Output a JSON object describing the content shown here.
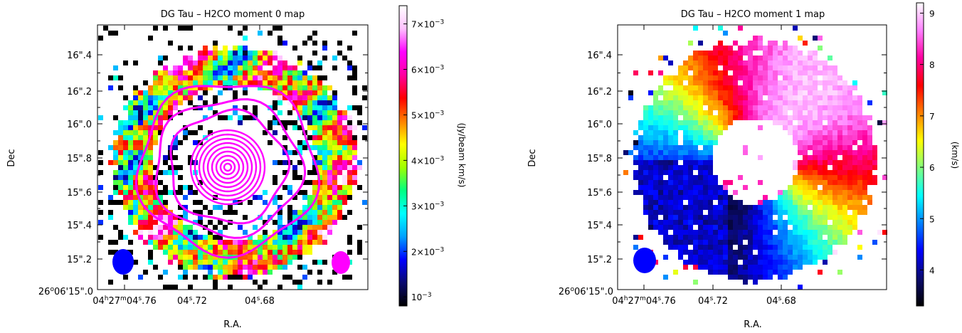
{
  "chart_data": [
    {
      "type": "heatmap",
      "title": "DG Tau – H2CO moment 0 map",
      "xlabel": "R.A.",
      "ylabel": "Dec",
      "x_ticks": [
        "04h27m04s.76",
        "04s.72",
        "04s.68"
      ],
      "x_tick_parts": [
        {
          "a": "04",
          "b": "h",
          "c": "27",
          "d": "m",
          "e": "04",
          "f": "s",
          "g": ".76"
        },
        {
          "a": "04",
          "b": "s",
          "c": ".72"
        },
        {
          "a": "04",
          "b": "s",
          "c": ".68"
        }
      ],
      "y_ticks": [
        "16\".4",
        "16\".2",
        "16\".0",
        "15\".8",
        "15\".6",
        "15\".4",
        "15\".2"
      ],
      "y_origin": {
        "a": "26",
        "b": "o",
        "c": "06'15\".0"
      },
      "colorbar": {
        "label": "(Jy/beam km/s)",
        "range": [
          0.0008,
          0.0074
        ],
        "ticks": [
          {
            "value": 0.001,
            "mant": "10",
            "exp": "−3",
            "prefix": ""
          },
          {
            "value": 0.002,
            "mant": "2×10",
            "exp": "−3"
          },
          {
            "value": 0.003,
            "mant": "3×10",
            "exp": "−3"
          },
          {
            "value": 0.004,
            "mant": "4×10",
            "exp": "−3"
          },
          {
            "value": 0.005,
            "mant": "5×10",
            "exp": "−3"
          },
          {
            "value": 0.006,
            "mant": "6×10",
            "exp": "−3"
          },
          {
            "value": 0.007,
            "mant": "7×10",
            "exp": "−3"
          }
        ],
        "colormap": [
          "#000000",
          "#0a0a6e",
          "#0000ff",
          "#00a0ff",
          "#00ffff",
          "#00ff80",
          "#a0ff00",
          "#ffff00",
          "#ff8000",
          "#ff0000",
          "#ff00a0",
          "#ff00ff",
          "#ffc0ff",
          "#ffffff"
        ]
      },
      "description_features": {
        "ring": "emission ring around central continuum contours",
        "contours": "magenta continuum contours centered at star",
        "beams": [
          "blue ellipse bottom-left",
          "magenta ellipse bottom-right"
        ]
      },
      "beam_colors": {
        "line": "#0000ff",
        "continuum": "#ff00ff"
      },
      "contour_color": "#ff00ff"
    },
    {
      "type": "heatmap",
      "title": "DG Tau – H2CO moment 1 map",
      "xlabel": "R.A.",
      "ylabel": "Dec",
      "x_ticks": [
        "04h27m04s.76",
        "04s.72",
        "04s.68"
      ],
      "x_tick_parts": [
        {
          "a": "04",
          "b": "h",
          "c": "27",
          "d": "m",
          "e": "04",
          "f": "s",
          "g": ".76"
        },
        {
          "a": "04",
          "b": "s",
          "c": ".72"
        },
        {
          "a": "04",
          "b": "s",
          "c": ".68"
        }
      ],
      "y_ticks": [
        "16\".4",
        "16\".2",
        "16\".0",
        "15\".8",
        "15\".6",
        "15\".4",
        "15\".2"
      ],
      "y_origin": {
        "a": "26",
        "b": "o",
        "c": "06'15\".0"
      },
      "colorbar": {
        "label": "(km/s)",
        "range": [
          3.3,
          9.2
        ],
        "ticks": [
          4,
          5,
          6,
          7,
          8,
          9
        ],
        "colormap": [
          "#000000",
          "#0a0a6e",
          "#0000ff",
          "#0080ff",
          "#00ffff",
          "#80ff80",
          "#ffff00",
          "#ff8000",
          "#ff0000",
          "#ff00a0",
          "#ff80ff",
          "#ffffff"
        ]
      },
      "beam_colors": {
        "line": "#0000ff"
      }
    }
  ]
}
